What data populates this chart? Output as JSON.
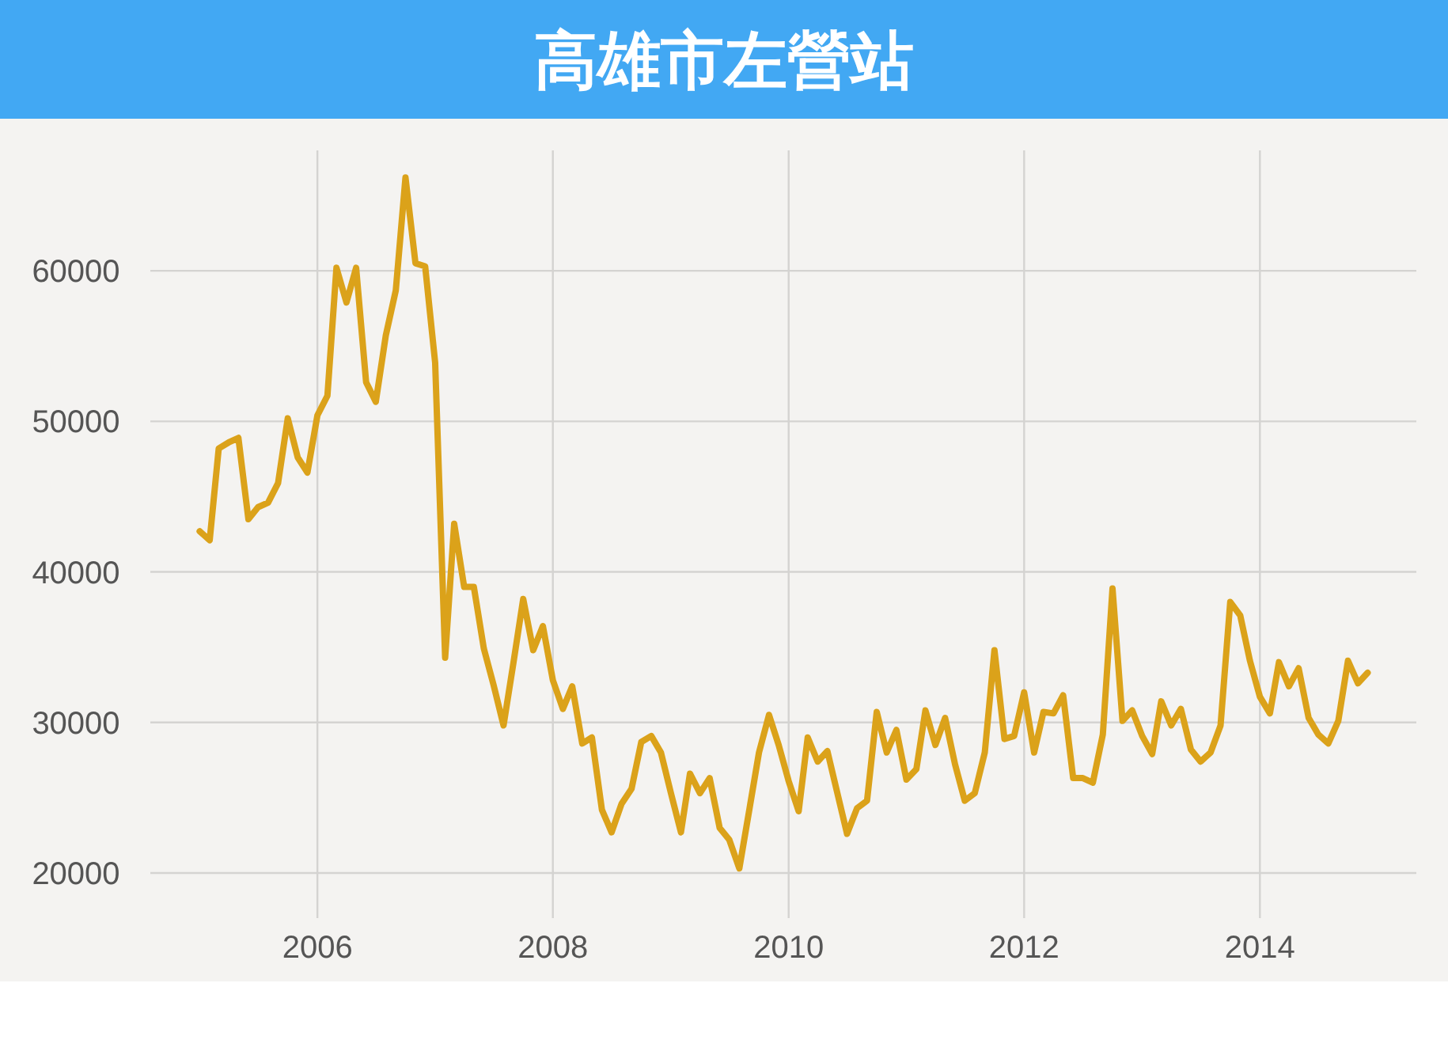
{
  "chart_data": {
    "type": "line",
    "title": "高雄市左營站",
    "x": [
      "2005-01",
      "2005-02",
      "2005-03",
      "2005-04",
      "2005-05",
      "2005-06",
      "2005-07",
      "2005-08",
      "2005-09",
      "2005-10",
      "2005-11",
      "2005-12",
      "2006-01",
      "2006-02",
      "2006-03",
      "2006-04",
      "2006-05",
      "2006-06",
      "2006-07",
      "2006-08",
      "2006-09",
      "2006-10",
      "2006-11",
      "2006-12",
      "2007-01",
      "2007-02",
      "2007-03",
      "2007-04",
      "2007-05",
      "2007-06",
      "2007-07",
      "2007-08",
      "2007-09",
      "2007-10",
      "2007-11",
      "2007-12",
      "2008-01",
      "2008-02",
      "2008-03",
      "2008-04",
      "2008-05",
      "2008-06",
      "2008-07",
      "2008-08",
      "2008-09",
      "2008-10",
      "2008-11",
      "2008-12",
      "2009-01",
      "2009-02",
      "2009-03",
      "2009-04",
      "2009-05",
      "2009-06",
      "2009-07",
      "2009-08",
      "2009-09",
      "2009-10",
      "2009-11",
      "2009-12",
      "2010-01",
      "2010-02",
      "2010-03",
      "2010-04",
      "2010-05",
      "2010-06",
      "2010-07",
      "2010-08",
      "2010-09",
      "2010-10",
      "2010-11",
      "2010-12",
      "2011-01",
      "2011-02",
      "2011-03",
      "2011-04",
      "2011-05",
      "2011-06",
      "2011-07",
      "2011-08",
      "2011-09",
      "2011-10",
      "2011-11",
      "2011-12",
      "2012-01",
      "2012-02",
      "2012-03",
      "2012-04",
      "2012-05",
      "2012-06",
      "2012-07",
      "2012-08",
      "2012-09",
      "2012-10",
      "2012-11",
      "2012-12",
      "2013-01",
      "2013-02",
      "2013-03",
      "2013-04",
      "2013-05",
      "2013-06",
      "2013-07",
      "2013-08",
      "2013-09",
      "2013-10",
      "2013-11",
      "2013-12",
      "2014-01",
      "2014-02",
      "2014-03",
      "2014-04",
      "2014-05",
      "2014-06",
      "2014-07",
      "2014-08",
      "2014-09",
      "2014-10",
      "2014-11",
      "2014-12"
    ],
    "series": [
      {
        "color": "#dba21a",
        "values": [
          42700,
          42100,
          48200,
          48600,
          48900,
          43500,
          44300,
          44600,
          45900,
          50200,
          47600,
          46600,
          50400,
          51700,
          60200,
          57900,
          60200,
          52600,
          51300,
          55700,
          58700,
          66200,
          60500,
          60300,
          53900,
          34300,
          43200,
          39000,
          39000,
          34900,
          32500,
          29800,
          34000,
          38200,
          34800,
          36400,
          32800,
          30900,
          32400,
          28600,
          29000,
          24200,
          22700,
          24600,
          25600,
          28700,
          29100,
          28000,
          25300,
          22700,
          26600,
          25300,
          26300,
          23000,
          22200,
          20300,
          24200,
          28000,
          30500,
          28500,
          26100,
          24100,
          29000,
          27400,
          28100,
          25300,
          22600,
          24300,
          24800,
          30700,
          28000,
          29500,
          26200,
          26900,
          30800,
          28500,
          30300,
          27200,
          24800,
          25300,
          28000,
          34800,
          28900,
          29100,
          32000,
          28000,
          30700,
          30600,
          31800,
          26300,
          26300,
          26000,
          29200,
          38900,
          30100,
          30800,
          29100,
          27900,
          31400,
          29800,
          30900,
          28200,
          27400,
          28000,
          29800,
          38000,
          37100,
          34100,
          31700,
          30600,
          34000,
          32400,
          33600,
          30300,
          29200,
          28600,
          30100,
          34100,
          32600,
          33300
        ]
      }
    ],
    "xlim": [
      "2004-08",
      "2015-05"
    ],
    "xticks": [
      "2006",
      "2008",
      "2010",
      "2012",
      "2014"
    ],
    "ylim": [
      17000,
      68000
    ],
    "yticks": [
      20000,
      30000,
      40000,
      50000,
      60000
    ],
    "grid": true,
    "marker": "none",
    "line_style": "solid"
  }
}
